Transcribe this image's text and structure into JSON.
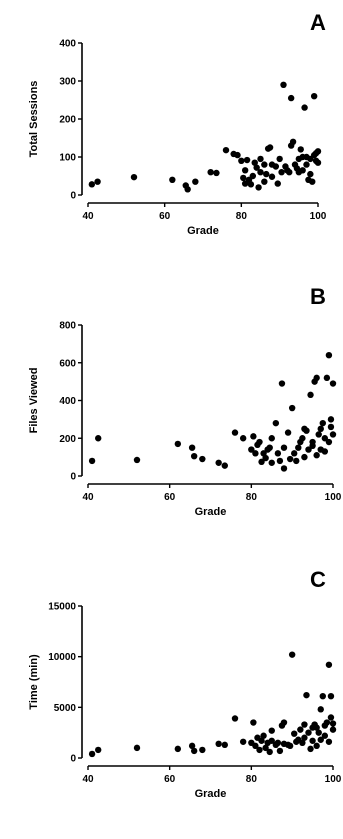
{
  "chart_data": [
    {
      "type": "scatter",
      "panel_label": "A",
      "xlabel": "Grade",
      "ylabel": "Total Sessions",
      "xlim": [
        40,
        100
      ],
      "ylim": [
        0,
        400
      ],
      "xticks": [
        40,
        60,
        80,
        100
      ],
      "yticks": [
        0,
        100,
        200,
        300,
        400
      ],
      "x": [
        41,
        42.5,
        52,
        62,
        65.5,
        66,
        68,
        72,
        73.5,
        76,
        78,
        79,
        80,
        80.5,
        81,
        81,
        81.5,
        82,
        82.5,
        83,
        83.5,
        84,
        84.5,
        85,
        85,
        86,
        86,
        86.5,
        87,
        87.5,
        88,
        88,
        89,
        89.5,
        90,
        90.5,
        91,
        91.5,
        92,
        92.5,
        93,
        93,
        93.5,
        94,
        94.5,
        95,
        95,
        95.5,
        96,
        96,
        96.5,
        97,
        97,
        97.5,
        98,
        98,
        98.5,
        99,
        99,
        99.5,
        99.5,
        100,
        100
      ],
      "y": [
        28,
        35,
        47,
        40,
        25,
        15,
        35,
        60,
        58,
        118,
        108,
        105,
        90,
        45,
        30,
        65,
        92,
        40,
        28,
        50,
        85,
        72,
        20,
        95,
        60,
        80,
        35,
        55,
        122,
        125,
        48,
        80,
        75,
        30,
        95,
        60,
        290,
        75,
        65,
        60,
        255,
        130,
        140,
        80,
        70,
        95,
        60,
        120,
        100,
        65,
        230,
        100,
        80,
        40,
        55,
        95,
        35,
        260,
        105,
        90,
        110,
        115,
        85
      ]
    },
    {
      "type": "scatter",
      "panel_label": "B",
      "xlabel": "Grade",
      "ylabel": "Files Viewed",
      "xlim": [
        40,
        100
      ],
      "ylim": [
        0,
        800
      ],
      "xticks": [
        40,
        60,
        80,
        100
      ],
      "yticks": [
        0,
        200,
        400,
        600,
        800
      ],
      "x": [
        41,
        42.5,
        52,
        62,
        65.5,
        66,
        68,
        72,
        73.5,
        76,
        78,
        80,
        80.5,
        81,
        81.5,
        82,
        82.5,
        83,
        83.5,
        84,
        84.5,
        85,
        85,
        86,
        86.5,
        87,
        87.5,
        88,
        88,
        89,
        89.5,
        90,
        90.5,
        91,
        91.5,
        92,
        92.5,
        93,
        93,
        93.5,
        94,
        94.5,
        95,
        95,
        95.5,
        96,
        96,
        96.5,
        97,
        97,
        97.5,
        98,
        98,
        98.5,
        99,
        99,
        99.5,
        99.5,
        100,
        100
      ],
      "y": [
        80,
        200,
        85,
        170,
        150,
        105,
        90,
        70,
        55,
        230,
        200,
        140,
        210,
        120,
        165,
        180,
        75,
        120,
        95,
        140,
        150,
        70,
        200,
        280,
        120,
        80,
        490,
        40,
        150,
        230,
        90,
        360,
        120,
        80,
        150,
        180,
        200,
        100,
        250,
        240,
        140,
        430,
        160,
        180,
        500,
        520,
        110,
        220,
        140,
        250,
        280,
        130,
        200,
        520,
        640,
        180,
        260,
        300,
        220,
        490
      ]
    },
    {
      "type": "scatter",
      "panel_label": "C",
      "xlabel": "Grade",
      "ylabel": "Time  (min)",
      "xlim": [
        40,
        100
      ],
      "ylim": [
        0,
        15000
      ],
      "xticks": [
        40,
        60,
        80,
        100
      ],
      "yticks": [
        0,
        5000,
        10000,
        15000
      ],
      "x": [
        41,
        42.5,
        52,
        62,
        65.5,
        66,
        68,
        72,
        73.5,
        76,
        78,
        80,
        80.5,
        81,
        81.5,
        82,
        82.5,
        83,
        83.5,
        84,
        84.5,
        85,
        85,
        86,
        86.5,
        87,
        87.5,
        88,
        88,
        89,
        89.5,
        90,
        90.5,
        91,
        91.5,
        92,
        92.5,
        93,
        93,
        93.5,
        94,
        94.5,
        95,
        95,
        95.5,
        96,
        96,
        96.5,
        97,
        97,
        97.5,
        98,
        98,
        98.5,
        99,
        99,
        99.5,
        99.5,
        100,
        100
      ],
      "y": [
        400,
        800,
        1000,
        900,
        1200,
        700,
        800,
        1400,
        1300,
        3900,
        1600,
        1500,
        3500,
        1200,
        2000,
        800,
        1700,
        2200,
        1000,
        1500,
        600,
        1700,
        2700,
        1300,
        1500,
        700,
        3200,
        1400,
        3500,
        1300,
        1200,
        10200,
        2400,
        1600,
        1800,
        2800,
        1500,
        2000,
        3300,
        6200,
        2500,
        900,
        3000,
        1700,
        3300,
        1200,
        3000,
        2500,
        4800,
        1800,
        6100,
        3200,
        2200,
        3500,
        9200,
        1600,
        4000,
        6100,
        2800,
        3400
      ]
    }
  ]
}
